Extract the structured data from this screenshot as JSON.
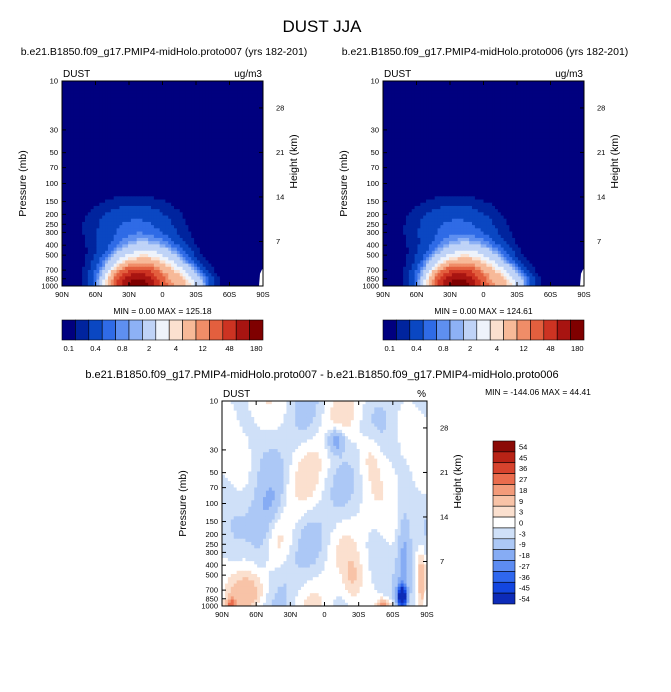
{
  "page_title": "DUST JJA",
  "colors": {
    "low_ramp": [
      "#00007f",
      "#00249e",
      "#0a47c2",
      "#2f6be6",
      "#5e8ff0",
      "#8db1f5",
      "#bfd3f7",
      "#eef3fb",
      "#fbe0cf",
      "#f7b998",
      "#f08d68",
      "#e35f3e",
      "#cd3322",
      "#a81411",
      "#7f0000"
    ],
    "diff_ramp": [
      "#0d2bb8",
      "#1346e0",
      "#2f67ee",
      "#5d8cf2",
      "#86acf4",
      "#acc8f6",
      "#cfe0f8",
      "#ffffff",
      "#fbe0cf",
      "#f8c3a7",
      "#f39b7a",
      "#ea6c4d",
      "#d7432d",
      "#b92316",
      "#8b0a06"
    ]
  },
  "chart_data": [
    {
      "type": "heatmap",
      "panel": "top-left",
      "title": "b.e21.B1850.f09_g17.PMIP4-midHolo.proto007 (yrs 182-201)",
      "left_label": "DUST",
      "right_label": "ug/m3",
      "ylabel": "Pressure (mb)",
      "ylabel_right": "Height (km)",
      "x_ticks": [
        "90N",
        "60N",
        "30N",
        "0",
        "30S",
        "60S",
        "90S"
      ],
      "x_values": [
        90,
        60,
        30,
        0,
        -30,
        -60,
        -90
      ],
      "y_ticks": [
        "10",
        "30",
        "50",
        "70",
        "100",
        "150",
        "200",
        "250",
        "300",
        "400",
        "500",
        "700",
        "850",
        "1000"
      ],
      "y_values": [
        10,
        30,
        50,
        70,
        100,
        150,
        200,
        250,
        300,
        400,
        500,
        700,
        850,
        1000
      ],
      "y_log": true,
      "height_ticks": [
        "28",
        "21",
        "14",
        "7"
      ],
      "height_values": [
        28,
        21,
        14,
        7
      ],
      "min_max_text": "MIN =   0.00  MAX = 125.18",
      "colorbar_ticks": [
        "0.1",
        "0.4",
        "0.8",
        "2",
        "4",
        "12",
        "48",
        "180"
      ],
      "max_value": 125.18,
      "min_value": 0.0
    },
    {
      "type": "heatmap",
      "panel": "top-right",
      "title": "b.e21.B1850.f09_g17.PMIP4-midHolo.proto006 (yrs 182-201)",
      "left_label": "DUST",
      "right_label": "ug/m3",
      "ylabel": "Pressure (mb)",
      "ylabel_right": "Height (km)",
      "x_ticks": [
        "90N",
        "60N",
        "30N",
        "0",
        "30S",
        "60S",
        "90S"
      ],
      "x_values": [
        90,
        60,
        30,
        0,
        -30,
        -60,
        -90
      ],
      "y_ticks": [
        "10",
        "30",
        "50",
        "70",
        "100",
        "150",
        "200",
        "250",
        "300",
        "400",
        "500",
        "700",
        "850",
        "1000"
      ],
      "y_values": [
        10,
        30,
        50,
        70,
        100,
        150,
        200,
        250,
        300,
        400,
        500,
        700,
        850,
        1000
      ],
      "y_log": true,
      "height_ticks": [
        "28",
        "21",
        "14",
        "7"
      ],
      "height_values": [
        28,
        21,
        14,
        7
      ],
      "min_max_text": "MIN =   0.00  MAX = 124.61",
      "colorbar_ticks": [
        "0.1",
        "0.4",
        "0.8",
        "2",
        "4",
        "12",
        "48",
        "180"
      ],
      "max_value": 124.61,
      "min_value": 0.0
    },
    {
      "type": "heatmap",
      "panel": "bottom",
      "title": "b.e21.B1850.f09_g17.PMIP4-midHolo.proto007 - b.e21.B1850.f09_g17.PMIP4-midHolo.proto006",
      "left_label": "DUST",
      "right_label": "%",
      "ylabel": "Pressure (mb)",
      "ylabel_right": "Height (km)",
      "x_ticks": [
        "90N",
        "60N",
        "30N",
        "0",
        "30S",
        "60S",
        "90S"
      ],
      "x_values": [
        90,
        60,
        30,
        0,
        -30,
        -60,
        -90
      ],
      "y_ticks": [
        "10",
        "30",
        "50",
        "70",
        "100",
        "150",
        "200",
        "250",
        "300",
        "400",
        "500",
        "700",
        "850",
        "1000"
      ],
      "y_values": [
        10,
        30,
        50,
        70,
        100,
        150,
        200,
        250,
        300,
        400,
        500,
        700,
        850,
        1000
      ],
      "y_log": true,
      "height_ticks": [
        "28",
        "21",
        "14",
        "7"
      ],
      "height_values": [
        28,
        21,
        14,
        7
      ],
      "min_max_text": "MIN = -144.06  MAX =  44.41",
      "colorbar_ticks": [
        "54",
        "45",
        "36",
        "27",
        "18",
        "9",
        "3",
        "0",
        "-3",
        "-9",
        "-18",
        "-27",
        "-36",
        "-45",
        "-54"
      ],
      "max_value": 44.41,
      "min_value": -144.06
    }
  ]
}
